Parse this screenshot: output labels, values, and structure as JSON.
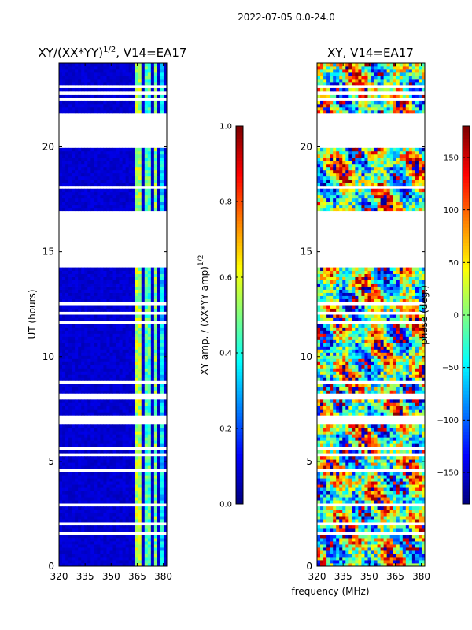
{
  "figure": {
    "suptitle": "2022-07-05 0.0-24.0",
    "shared_xlabel": "frequency (MHz)"
  },
  "colormap": "jet",
  "chart_data": [
    {
      "type": "heatmap",
      "title_main": "XY/(XX*YY)",
      "title_sup": "1/2",
      "title_tail": ", V14=EA17",
      "xlabel": "",
      "ylabel": "UT (hours)",
      "xlim": [
        320,
        382
      ],
      "ylim": [
        0,
        24
      ],
      "xticks": [
        320,
        335,
        350,
        365,
        380
      ],
      "yticks": [
        0,
        5,
        10,
        15,
        20
      ],
      "value_range": [
        0,
        1
      ],
      "bright_freq_ranges": [
        [
          363,
          367
        ],
        [
          369,
          372
        ],
        [
          375,
          377
        ],
        [
          378,
          381
        ]
      ],
      "bright_freq_values": [
        0.55,
        0.45,
        0.5,
        0.35
      ],
      "background_value": 0.08,
      "colorbar": {
        "label_main": "XY amp. / (XX*YY amp)",
        "label_sup": "1/2",
        "ticks": [
          0.0,
          0.2,
          0.4,
          0.6,
          0.8,
          1.0
        ],
        "tick_labels": [
          "0.0",
          "0.2",
          "0.4",
          "0.6",
          "0.8",
          "1.0"
        ]
      }
    },
    {
      "type": "heatmap",
      "title_main": "XY, V14=EA17",
      "xlabel": "frequency (MHz)",
      "ylabel": "",
      "xlim": [
        320,
        382
      ],
      "ylim": [
        0,
        24
      ],
      "xticks": [
        320,
        335,
        350,
        365,
        380
      ],
      "yticks": [
        0,
        5,
        10,
        15,
        20
      ],
      "value_range": [
        -180,
        180
      ],
      "colorbar": {
        "label_main": "phase (deg.)",
        "ticks": [
          -150,
          -100,
          -50,
          0,
          50,
          100,
          150
        ],
        "tick_labels": [
          "−150",
          "−100",
          "−50",
          "0",
          "50",
          "100",
          "150"
        ]
      }
    }
  ],
  "data_gaps_ut_hours": [
    [
      0.15,
      0.22
    ],
    [
      0.58,
      0.63
    ],
    [
      1.05,
      1.1
    ],
    [
      1.52,
      1.58
    ],
    [
      2.02,
      2.07
    ],
    [
      2.42,
      2.47
    ],
    [
      2.92,
      2.97
    ],
    [
      3.25,
      3.3
    ],
    [
      3.55,
      3.6
    ],
    [
      3.72,
      3.78
    ],
    [
      4.55,
      4.6
    ],
    [
      5.05,
      5.1
    ],
    [
      5.3,
      5.35
    ],
    [
      5.6,
      5.65
    ],
    [
      5.98,
      6.03
    ],
    [
      6.25,
      6.3
    ],
    [
      6.8,
      7.25
    ],
    [
      7.95,
      8.3
    ],
    [
      8.75,
      8.8
    ],
    [
      9.18,
      9.22
    ],
    [
      9.72,
      9.77
    ],
    [
      10.35,
      10.4
    ],
    [
      11.05,
      11.1
    ],
    [
      11.58,
      11.63
    ],
    [
      11.95,
      12.08
    ],
    [
      12.5,
      12.55
    ],
    [
      13.05,
      13.1
    ],
    [
      13.35,
      13.4
    ],
    [
      14.3,
      16.95
    ],
    [
      17.25,
      17.3
    ],
    [
      17.65,
      17.7
    ],
    [
      18.05,
      18.1
    ],
    [
      18.45,
      18.5
    ],
    [
      18.9,
      18.95
    ],
    [
      19.2,
      19.25
    ],
    [
      19.95,
      21.6
    ],
    [
      22.25,
      22.3
    ],
    [
      22.52,
      22.58
    ],
    [
      22.85,
      22.92
    ],
    [
      23.25,
      23.3
    ]
  ]
}
